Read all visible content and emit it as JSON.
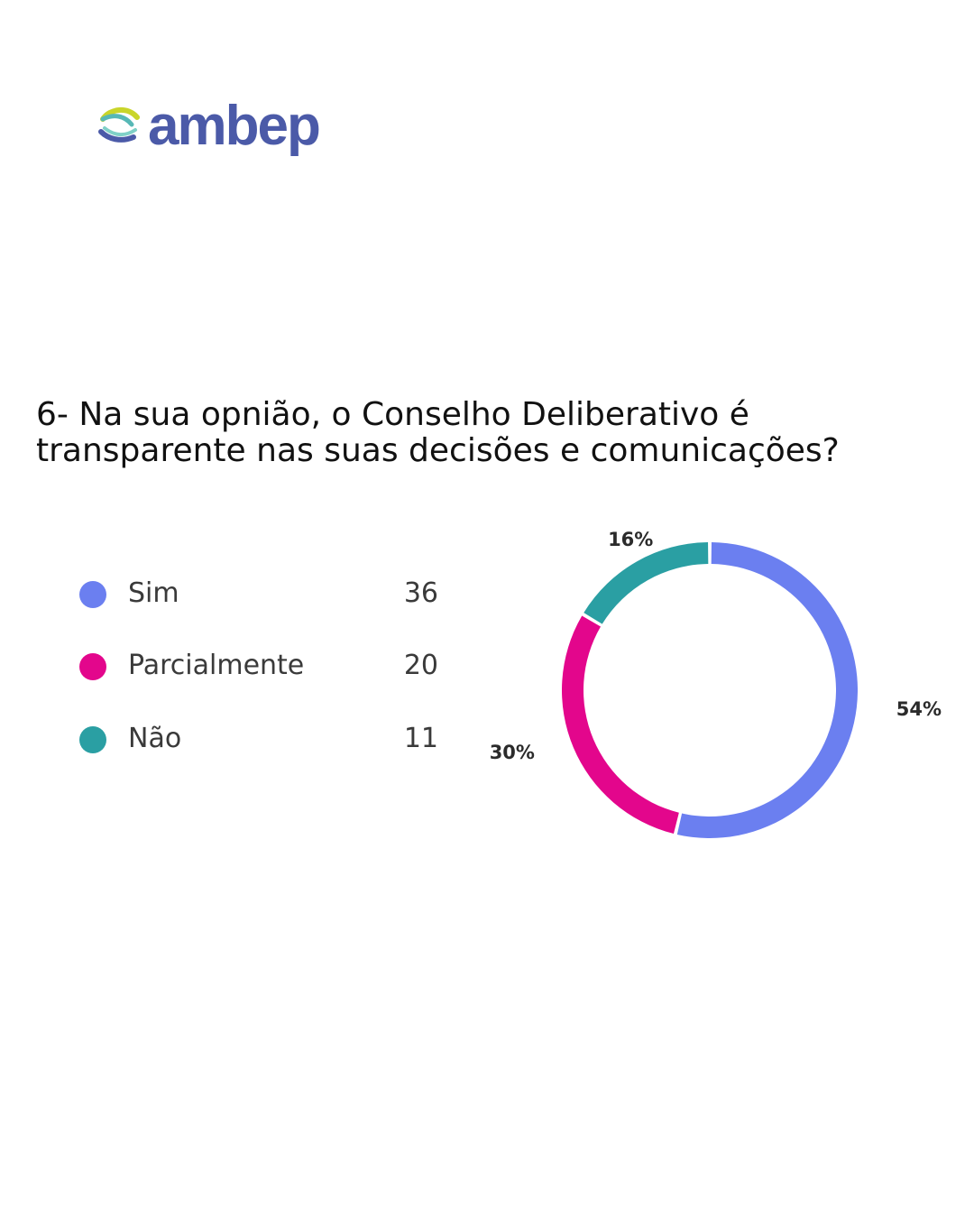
{
  "brand": {
    "name": "ambep"
  },
  "question": "6- Na sua opnião, o Conselho Deliberativo é transparente nas suas decisões e comunicações?",
  "chart_data": {
    "type": "pie",
    "subtype": "donut",
    "categories": [
      "Sim",
      "Parcialmente",
      "Não"
    ],
    "values": [
      36,
      20,
      11
    ],
    "percent_labels": [
      "54%",
      "30%",
      "16%"
    ],
    "colors": [
      "#6b7ff0",
      "#e3068c",
      "#2a9fa3"
    ],
    "legend": "left"
  }
}
